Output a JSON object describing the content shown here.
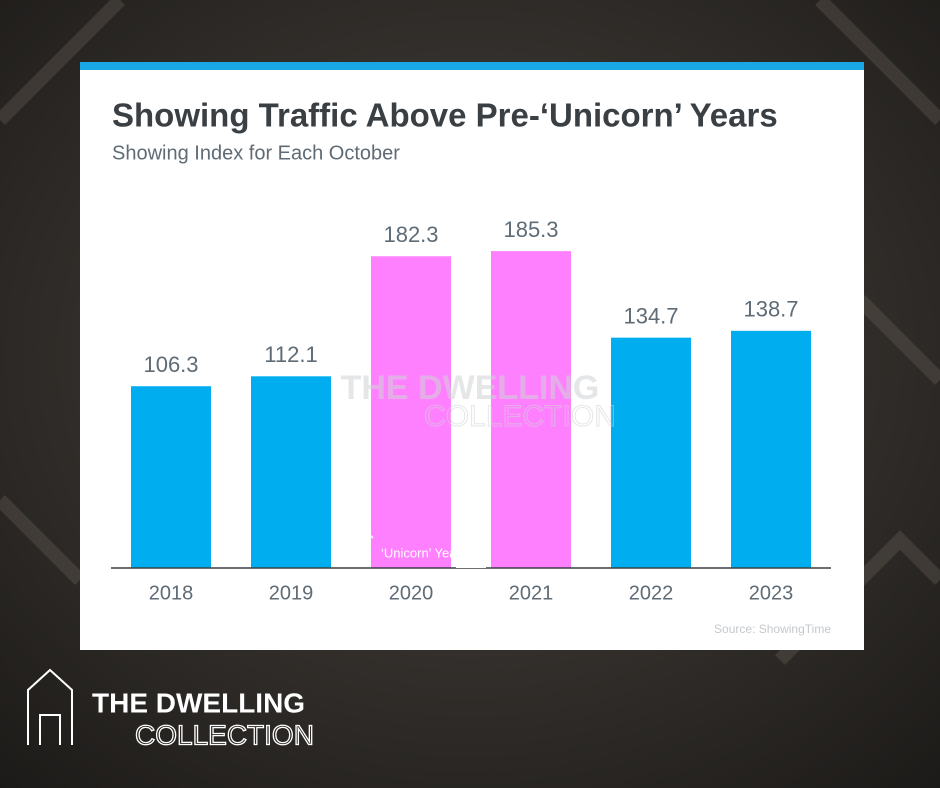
{
  "chart_data": {
    "type": "bar",
    "title": "Showing Traffic Above Pre-‘Unicorn’ Years",
    "subtitle": "Showing Index for Each October",
    "categories": [
      "2018",
      "2019",
      "2020",
      "2021",
      "2022",
      "2023"
    ],
    "values": [
      106.3,
      112.1,
      182.3,
      185.3,
      134.7,
      138.7
    ],
    "colors": [
      "#00aeef",
      "#00aeef",
      "#ff80ff",
      "#ff80ff",
      "#00aeef",
      "#00aeef"
    ],
    "ylim": [
      0,
      200
    ],
    "annotation": "‘Unicorn’ Years",
    "source": "Source: ShowingTime"
  },
  "branding": {
    "line1": "THE DWELLING",
    "line2": "COLLECTION"
  }
}
